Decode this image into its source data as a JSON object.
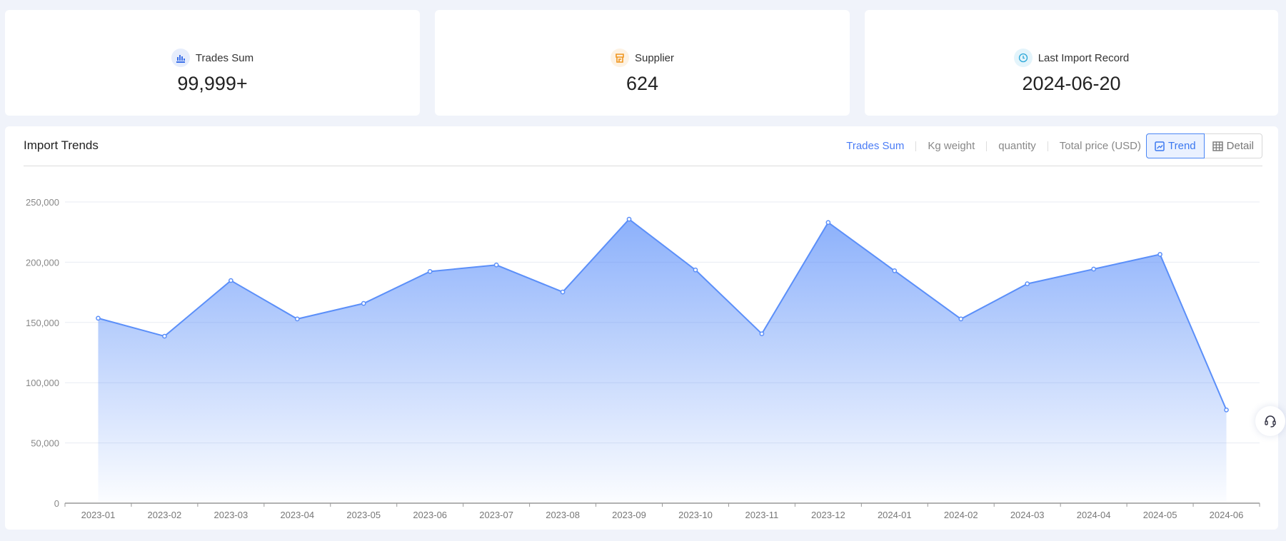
{
  "stats": [
    {
      "label": "Trades Sum",
      "value": "99,999+",
      "icon": "bar-chart-icon",
      "color": "#3b6fe8",
      "bg": "#e6edfc"
    },
    {
      "label": "Supplier",
      "value": "624",
      "icon": "store-icon",
      "color": "#f0961f",
      "bg": "#fdf2e3"
    },
    {
      "label": "Last Import Record",
      "value": "2024-06-20",
      "icon": "clock-icon",
      "color": "#2aa7d8",
      "bg": "#e3f4fb"
    }
  ],
  "panel": {
    "title": "Import Trends",
    "metrics": [
      "Trades Sum",
      "Kg weight",
      "quantity",
      "Total price (USD)"
    ],
    "active_metric": "Trades Sum",
    "views": [
      "Trend",
      "Detail"
    ],
    "active_view": "Trend"
  },
  "chart_data": {
    "type": "area",
    "categories": [
      "2023-01",
      "2023-02",
      "2023-03",
      "2023-04",
      "2023-05",
      "2023-06",
      "2023-07",
      "2023-08",
      "2023-09",
      "2023-10",
      "2023-11",
      "2023-12",
      "2024-01",
      "2024-02",
      "2024-03",
      "2024-04",
      "2024-05",
      "2024-06"
    ],
    "values": [
      153500,
      138600,
      184800,
      152900,
      165800,
      192300,
      197700,
      175300,
      235700,
      193600,
      140600,
      233000,
      192900,
      152900,
      182100,
      194300,
      206500,
      77400
    ],
    "yticks": [
      "0",
      "50,000",
      "100,000",
      "150,000",
      "200,000",
      "250,000"
    ],
    "ylim": [
      0,
      250000
    ],
    "grid": true,
    "color": "#5b8ff9"
  }
}
